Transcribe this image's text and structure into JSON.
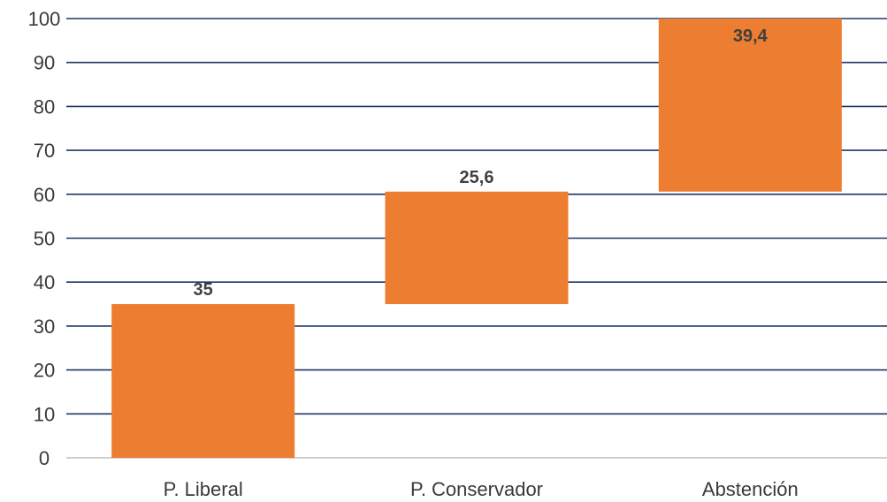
{
  "chart_data": {
    "type": "bar",
    "subtype": "waterfall",
    "title": "",
    "xlabel": "",
    "ylabel": "",
    "ylim": [
      0,
      100
    ],
    "yticks": [
      0,
      10,
      20,
      30,
      40,
      50,
      60,
      70,
      80,
      90,
      100
    ],
    "categories": [
      "P. Liberal",
      "P. Conservador",
      "Abstención"
    ],
    "values": [
      35,
      25.6,
      39.4
    ],
    "data_labels": [
      "35",
      "25,6",
      "39,4"
    ],
    "grid": true,
    "legend": "none",
    "colors": {
      "bar": "#ED7D31",
      "gridline": "#203864",
      "axis_text": "#3a3a3a",
      "data_label": "#404040"
    }
  }
}
